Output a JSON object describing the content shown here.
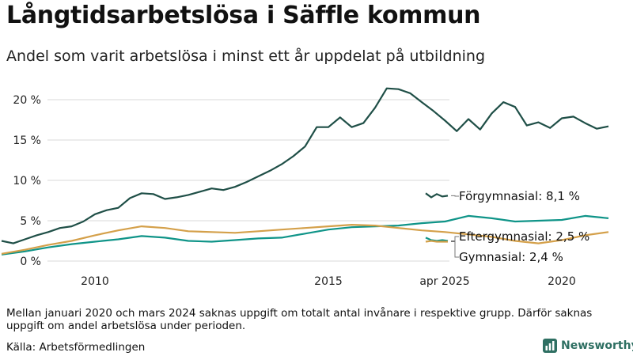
{
  "title": "Långtidsarbetslösa i Säffle kommun",
  "subtitle": "Andel som varit arbetslösa i minst ett år uppdelat på utbildning",
  "note": "Mellan januari 2020 och mars 2024 saknas uppgift om totalt antal invånare i respektive grupp. Därför saknas uppgift om andel arbetslösa under perioden.",
  "source": "Källa: Arbetsförmedlingen",
  "brand": "Newsworthy",
  "colors": {
    "forgymnasial": "#1f4f47",
    "eftergymnasial": "#0f9488",
    "gymnasial": "#d4a04a",
    "grid": "#d9d9d9",
    "axis_text": "#222222"
  },
  "chart_data": {
    "type": "line",
    "title": "Långtidsarbetslösa i Säffle kommun",
    "subtitle": "Andel som varit arbetslösa i minst ett år uppdelat på utbildning",
    "xlabel": "",
    "ylabel": "",
    "ylim": [
      0,
      22
    ],
    "y_ticks": [
      0,
      5,
      10,
      15,
      20
    ],
    "y_tick_labels": [
      "0 %",
      "5 %",
      "10 %",
      "15 %",
      "20 %"
    ],
    "x_ticks": [
      2010,
      2015,
      2020,
      2025.25
    ],
    "x_tick_labels": [
      "2010",
      "2015",
      "2020",
      "apr 2025"
    ],
    "grid": true,
    "series": [
      {
        "name": "Förgymnasial",
        "end_label": "Förgymnasial: 8,1 %",
        "color": "#1f4f47",
        "x": [
          2008.0,
          2008.25,
          2008.5,
          2008.75,
          2009.0,
          2009.25,
          2009.5,
          2009.75,
          2010.0,
          2010.25,
          2010.5,
          2010.75,
          2011.0,
          2011.25,
          2011.5,
          2011.75,
          2012.0,
          2012.25,
          2012.5,
          2012.75,
          2013.0,
          2013.25,
          2013.5,
          2013.75,
          2014.0,
          2014.25,
          2014.5,
          2014.75,
          2015.0,
          2015.25,
          2015.5,
          2015.75,
          2016.0,
          2016.25,
          2016.5,
          2016.75,
          2017.0,
          2017.25,
          2017.5,
          2017.75,
          2018.0,
          2018.25,
          2018.5,
          2018.75,
          2019.0,
          2019.25,
          2019.5,
          2019.75,
          2020.0,
          2020.25,
          2020.5,
          2020.75,
          2021.0
        ],
        "y": [
          2.5,
          2.2,
          2.7,
          3.2,
          3.6,
          4.1,
          4.3,
          4.9,
          5.8,
          6.3,
          6.6,
          7.8,
          8.4,
          8.3,
          7.7,
          7.9,
          8.2,
          8.6,
          9.0,
          8.8,
          9.2,
          9.8,
          10.5,
          11.2,
          12.0,
          13.0,
          14.2,
          16.6,
          16.6,
          17.8,
          16.6,
          17.1,
          19.0,
          21.4,
          21.3,
          20.8,
          19.7,
          18.6,
          17.4,
          16.1,
          17.6,
          16.3,
          18.3,
          19.7,
          19.1,
          16.8,
          17.2,
          16.5,
          17.7,
          17.9,
          17.1,
          16.4,
          16.7
        ]
      },
      {
        "name": "Eftergymnasial",
        "end_label": "Eftergymnasial: 2,5 %",
        "color": "#0f9488",
        "x": [
          2008.0,
          2008.5,
          2009.0,
          2009.5,
          2010.0,
          2010.5,
          2011.0,
          2011.5,
          2012.0,
          2012.5,
          2013.0,
          2013.5,
          2014.0,
          2014.5,
          2015.0,
          2015.5,
          2016.0,
          2016.5,
          2017.0,
          2017.5,
          2018.0,
          2018.5,
          2019.0,
          2019.5,
          2020.0,
          2020.5,
          2021.0
        ],
        "y": [
          0.8,
          1.2,
          1.7,
          2.1,
          2.4,
          2.7,
          3.1,
          2.9,
          2.5,
          2.4,
          2.6,
          2.8,
          2.9,
          3.4,
          3.9,
          4.2,
          4.3,
          4.4,
          4.7,
          4.9,
          5.6,
          5.3,
          4.9,
          5.0,
          5.1,
          5.6,
          5.3
        ]
      },
      {
        "name": "Gymnasial",
        "end_label": "Gymnasial: 2,4 %",
        "color": "#d4a04a",
        "x": [
          2008.0,
          2008.5,
          2009.0,
          2009.5,
          2010.0,
          2010.5,
          2011.0,
          2011.5,
          2012.0,
          2012.5,
          2013.0,
          2013.5,
          2014.0,
          2014.5,
          2015.0,
          2015.5,
          2016.0,
          2016.5,
          2017.0,
          2017.5,
          2018.0,
          2018.5,
          2019.0,
          2019.5,
          2020.0,
          2020.5,
          2021.0
        ],
        "y": [
          0.9,
          1.4,
          2.0,
          2.5,
          3.2,
          3.8,
          4.3,
          4.1,
          3.7,
          3.6,
          3.5,
          3.7,
          3.9,
          4.1,
          4.3,
          4.5,
          4.4,
          4.1,
          3.8,
          3.6,
          3.3,
          3.0,
          2.5,
          2.2,
          2.6,
          3.2,
          3.6
        ]
      }
    ],
    "latest": [
      {
        "name": "Förgymnasial",
        "x": [
          2024.25,
          2024.5,
          2024.75,
          2025.0,
          2025.25
        ],
        "y": [
          8.4,
          7.9,
          8.3,
          8.0,
          8.1
        ]
      },
      {
        "name": "Eftergymnasial",
        "x": [
          2024.25,
          2024.5,
          2024.75,
          2025.0,
          2025.25
        ],
        "y": [
          2.9,
          2.6,
          2.5,
          2.6,
          2.5
        ]
      },
      {
        "name": "Gymnasial",
        "x": [
          2024.25,
          2024.5,
          2024.75,
          2025.0,
          2025.25
        ],
        "y": [
          2.4,
          2.5,
          2.4,
          2.4,
          2.4
        ]
      }
    ]
  }
}
